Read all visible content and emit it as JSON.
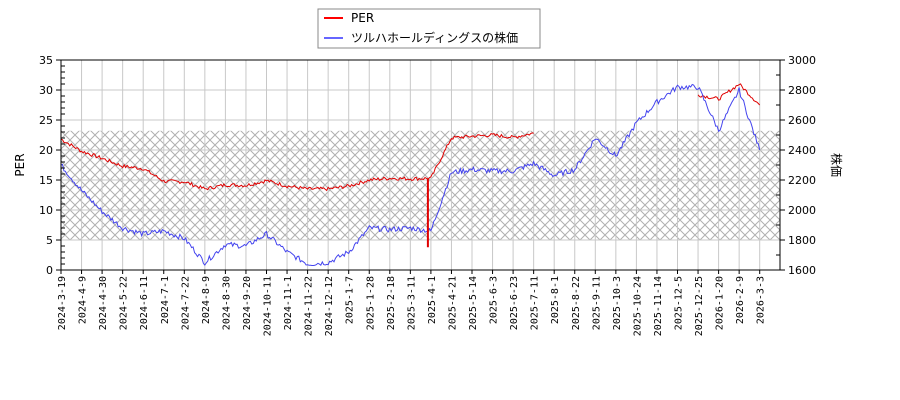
{
  "chart_data": {
    "type": "line",
    "title": "",
    "xlabel": "",
    "ylabel": "PER",
    "ylabel_right": "株価",
    "ylim": [
      0,
      35
    ],
    "ylim_right": [
      1600,
      3000
    ],
    "yticks": [
      0,
      5,
      10,
      15,
      20,
      25,
      30,
      35
    ],
    "yticks_right": [
      1600,
      1800,
      2000,
      2200,
      2400,
      2600,
      2800,
      3000
    ],
    "grid": true,
    "legend_position": "top-center",
    "shaded_band": {
      "axis": "left",
      "from": 5,
      "to": 23.2,
      "pattern": "crosshatch"
    },
    "categories": [
      "2024-3-19",
      "2024-4-9",
      "2024-4-30",
      "2024-5-22",
      "2024-6-11",
      "2024-7-1",
      "2024-7-22",
      "2024-8-9",
      "2024-8-30",
      "2024-9-20",
      "2024-10-11",
      "2024-11-1",
      "2024-11-22",
      "2024-12-12",
      "2025-1-7",
      "2025-1-28",
      "2025-2-18",
      "2025-3-11",
      "2025-4-1",
      "2025-4-21",
      "2025-5-14",
      "2025-6-3",
      "2025-6-23",
      "2025-7-11",
      "2025-8-1",
      "2025-8-22",
      "2025-9-11",
      "2025-10-3",
      "2025-10-24",
      "2025-11-14",
      "2025-12-5",
      "2025-12-25",
      "2026-1-20",
      "2026-2-9",
      "2026-3-3"
    ],
    "series": [
      {
        "name": "PER",
        "color": "#ff0000",
        "axis": "left",
        "values": [
          21.8,
          19.8,
          18.6,
          17.3,
          16.9,
          14.8,
          14.7,
          13.5,
          14.2,
          14.1,
          14.9,
          14.0,
          13.5,
          13.5,
          14.0,
          15.0,
          15.3,
          15.2,
          15.3,
          22.0,
          22.3,
          22.5,
          22.1,
          22.8,
          null,
          null,
          null,
          null,
          null,
          null,
          null,
          29.2,
          28.5,
          31.0,
          27.5
        ]
      },
      {
        "name": "ツルハホールディングスの株価",
        "color": "#0000ff",
        "axis": "right",
        "values": [
          2300,
          2130,
          1990,
          1880,
          1840,
          1860,
          1810,
          1650,
          1770,
          1760,
          1840,
          1720,
          1640,
          1650,
          1720,
          1880,
          1870,
          1880,
          1860,
          2250,
          2270,
          2260,
          2260,
          2310,
          2230,
          2270,
          2480,
          2360,
          2580,
          2720,
          2820,
          2820,
          2530,
          2800,
          2400
        ]
      }
    ]
  },
  "legend": {
    "items": [
      {
        "label": "PER",
        "color": "#ff0000"
      },
      {
        "label": "ツルハホールディングスの株価",
        "color": "#0000ff"
      }
    ]
  },
  "axes": {
    "left_title": "PER",
    "right_title": "株価"
  }
}
